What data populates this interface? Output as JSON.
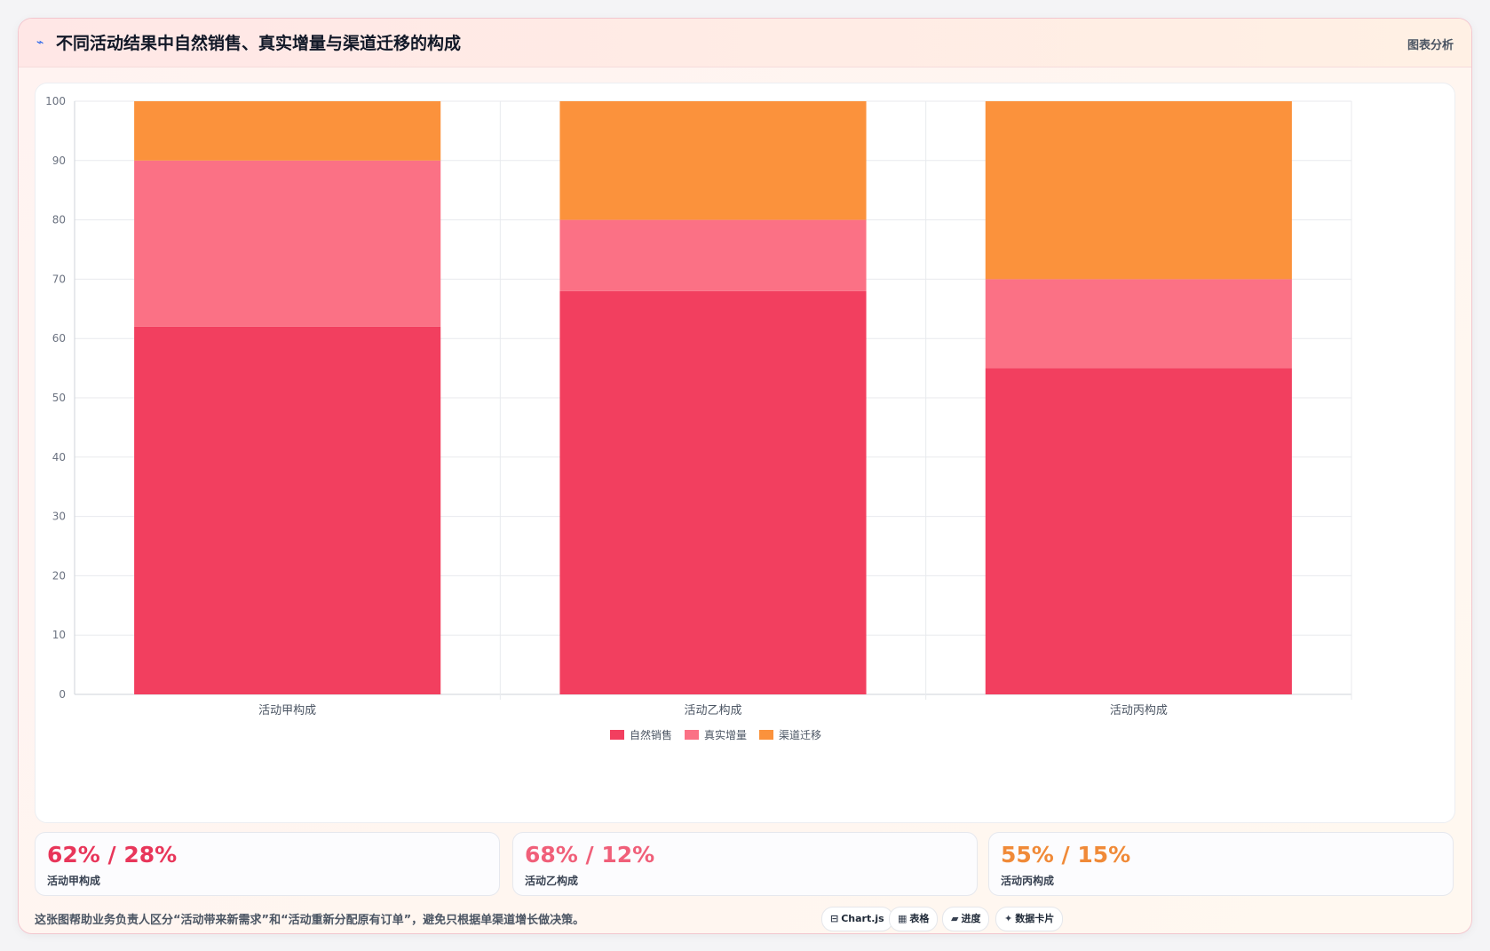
{
  "header": {
    "icon": "trend-line-icon",
    "title": "不同活动结果中自然销售、真实增量与渠道迁移的构成",
    "tag": "图表分析"
  },
  "colors": {
    "natural": "#f23f5f",
    "incremental": "#fb7185",
    "migration": "#fb923c"
  },
  "chart_data": {
    "type": "bar",
    "stacked": true,
    "categories": [
      "活动甲构成",
      "活动乙构成",
      "活动丙构成"
    ],
    "series": [
      {
        "name": "自然销售",
        "values": [
          62,
          68,
          55
        ],
        "color": "#f23f5f"
      },
      {
        "name": "真实增量",
        "values": [
          28,
          12,
          15
        ],
        "color": "#fb7185"
      },
      {
        "name": "渠道迁移",
        "values": [
          10,
          20,
          30
        ],
        "color": "#fb923c"
      }
    ],
    "ylim": [
      0,
      100
    ],
    "yticks": [
      0,
      10,
      20,
      30,
      40,
      50,
      60,
      70,
      80,
      90,
      100
    ],
    "grid": true,
    "legend": "bottom"
  },
  "stats": [
    {
      "value": "62% / 28%",
      "label": "活动甲构成",
      "color": "#e8365a"
    },
    {
      "value": "68% / 12%",
      "label": "活动乙构成",
      "color": "#f05f79"
    },
    {
      "value": "55% / 15%",
      "label": "活动丙构成",
      "color": "#f08a38"
    }
  ],
  "footnote": "这张图帮助业务负责人区分“活动带来新需求”和“活动重新分配原有订单”，避免只根据单渠道增长做决策。",
  "chips": [
    {
      "icon": "⊟",
      "label": "Chart.js"
    },
    {
      "icon": "▦",
      "label": "表格"
    },
    {
      "icon": "▰",
      "label": "进度"
    },
    {
      "icon": "✦",
      "label": "数据卡片"
    }
  ]
}
